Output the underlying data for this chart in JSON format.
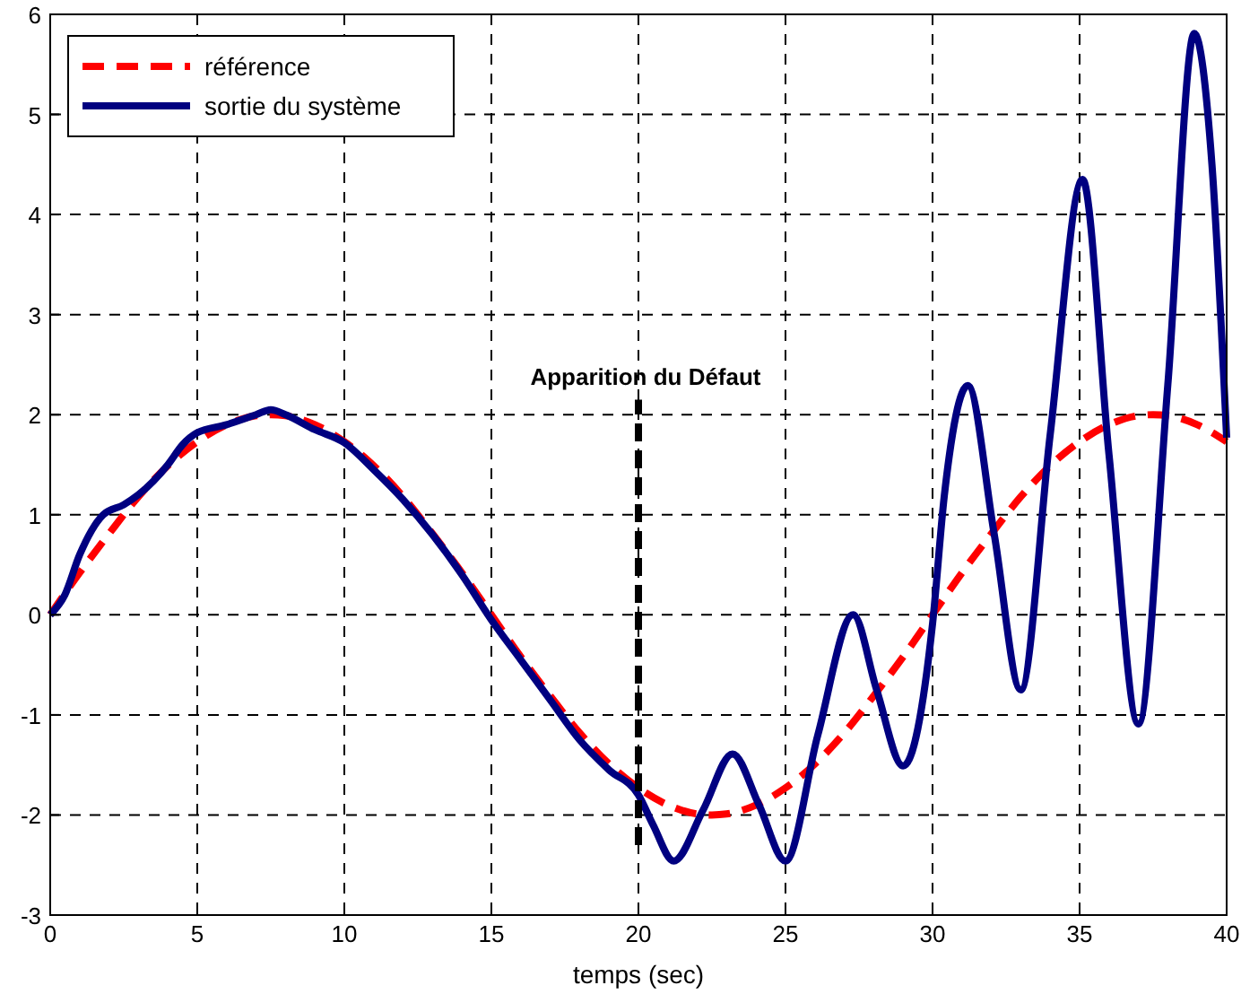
{
  "chart_data": {
    "type": "line",
    "xlabel": "temps (sec)",
    "xlim": [
      0,
      40
    ],
    "xticks": [
      0,
      5,
      10,
      15,
      20,
      25,
      30,
      35,
      40
    ],
    "ylim": [
      -3,
      6
    ],
    "yticks": [
      -3,
      -2,
      -1,
      0,
      1,
      2,
      3,
      4,
      5,
      6
    ],
    "grid": true,
    "legend": "top left",
    "annotations": [
      {
        "text": "Apparition du Défaut",
        "x": 20,
        "y": 2.15
      }
    ],
    "series": [
      {
        "name": "référence",
        "color": "#ff0000",
        "line_style": "dashed",
        "x": [
          0,
          1,
          2,
          3,
          4,
          5,
          6,
          7,
          7.5,
          8,
          9,
          10,
          11,
          12,
          13,
          14,
          15,
          16,
          17,
          18,
          19,
          20,
          21,
          22,
          22.5,
          23,
          24,
          25,
          26,
          27,
          28,
          29,
          30,
          31,
          32,
          33,
          34,
          35,
          36,
          37,
          37.5,
          38,
          39,
          40
        ],
        "values": [
          0,
          0.42,
          0.81,
          1.18,
          1.49,
          1.73,
          1.9,
          1.99,
          2,
          1.99,
          1.9,
          1.73,
          1.49,
          1.18,
          0.81,
          0.42,
          0,
          -0.42,
          -0.81,
          -1.18,
          -1.49,
          -1.73,
          -1.9,
          -1.99,
          -2,
          -1.99,
          -1.9,
          -1.73,
          -1.49,
          -1.18,
          -0.81,
          -0.42,
          0,
          0.42,
          0.81,
          1.18,
          1.49,
          1.73,
          1.9,
          1.99,
          2,
          1.99,
          1.9,
          1.73
        ]
      },
      {
        "name": "sortie du système",
        "color": "#000080",
        "line_style": "solid",
        "x": [
          0,
          0.5,
          1,
          1.8,
          2.5,
          3,
          4,
          4.5,
          5,
          6,
          7,
          7.5,
          8,
          9,
          10,
          11,
          12,
          13,
          14,
          15,
          16,
          17,
          18,
          19,
          20,
          20.5,
          21.2,
          22.2,
          23.2,
          24.1,
          25,
          26.1,
          27.3,
          28.1,
          29,
          30,
          30.4,
          31.2,
          32.1,
          33,
          34,
          35.1,
          36,
          37,
          38,
          38.9,
          39.5,
          40
        ],
        "values": [
          0,
          0.2,
          0.6,
          1,
          1.1,
          1.2,
          1.5,
          1.7,
          1.82,
          1.9,
          2,
          2.05,
          2,
          1.85,
          1.72,
          1.45,
          1.15,
          0.8,
          0.4,
          -0.05,
          -0.45,
          -0.85,
          -1.25,
          -1.55,
          -1.8,
          -2.1,
          -2.46,
          -1.95,
          -1.39,
          -1.9,
          -2.46,
          -1.2,
          0,
          -0.75,
          -1.51,
          -0.09,
          1.19,
          2.29,
          0.8,
          -0.75,
          1.8,
          4.35,
          1.6,
          -1.09,
          2.3,
          5.81,
          4.5,
          1.77
        ]
      },
      {
        "color": "#000000",
        "line_style": "dashed",
        "x": [
          20,
          20
        ],
        "values": [
          -2.3,
          2.15
        ]
      }
    ]
  }
}
